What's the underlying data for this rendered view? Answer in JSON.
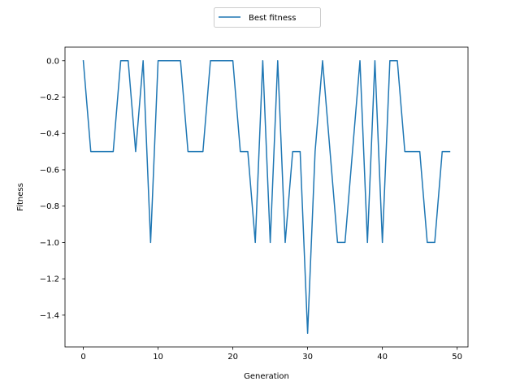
{
  "chart_data": {
    "type": "line",
    "title": "",
    "xlabel": "Generation",
    "ylabel": "Fitness",
    "xlim": [
      -2.45,
      51.45
    ],
    "ylim": [
      -1.575,
      0.075
    ],
    "xticks": [
      0,
      10,
      20,
      30,
      40,
      50
    ],
    "xtick_labels": [
      "0",
      "10",
      "20",
      "30",
      "40",
      "50"
    ],
    "yticks": [
      0.0,
      -0.2,
      -0.4,
      -0.6,
      -0.8,
      -1.0,
      -1.2,
      -1.4
    ],
    "ytick_labels": [
      "0.0",
      "−0.2",
      "−0.4",
      "−0.6",
      "−0.8",
      "−1.0",
      "−1.2",
      "−1.4"
    ],
    "grid": false,
    "legend_position": "top-center-outside",
    "series": [
      {
        "name": "Best fitness",
        "color": "#1f77b4",
        "x": [
          0,
          1,
          2,
          3,
          4,
          5,
          6,
          7,
          8,
          9,
          10,
          11,
          12,
          13,
          14,
          15,
          16,
          17,
          18,
          19,
          20,
          21,
          22,
          23,
          24,
          25,
          26,
          27,
          28,
          29,
          30,
          31,
          32,
          33,
          34,
          35,
          36,
          37,
          38,
          39,
          40,
          41,
          42,
          43,
          44,
          45,
          46,
          47,
          48,
          49
        ],
        "values": [
          0.0,
          -0.5,
          -0.5,
          -0.5,
          -0.5,
          0.0,
          0.0,
          -0.5,
          0.0,
          -1.0,
          0.0,
          0.0,
          0.0,
          0.0,
          -0.5,
          -0.5,
          -0.5,
          0.0,
          0.0,
          0.0,
          0.0,
          -0.5,
          -0.5,
          -1.0,
          0.0,
          -1.0,
          0.0,
          -1.0,
          -0.5,
          -0.5,
          -1.5,
          -0.5,
          0.0,
          -0.5,
          -1.0,
          -1.0,
          -0.5,
          0.0,
          -1.0,
          0.0,
          -1.0,
          0.0,
          0.0,
          -0.5,
          -0.5,
          -0.5,
          -1.0,
          -1.0,
          -0.5,
          -0.5
        ]
      }
    ]
  }
}
